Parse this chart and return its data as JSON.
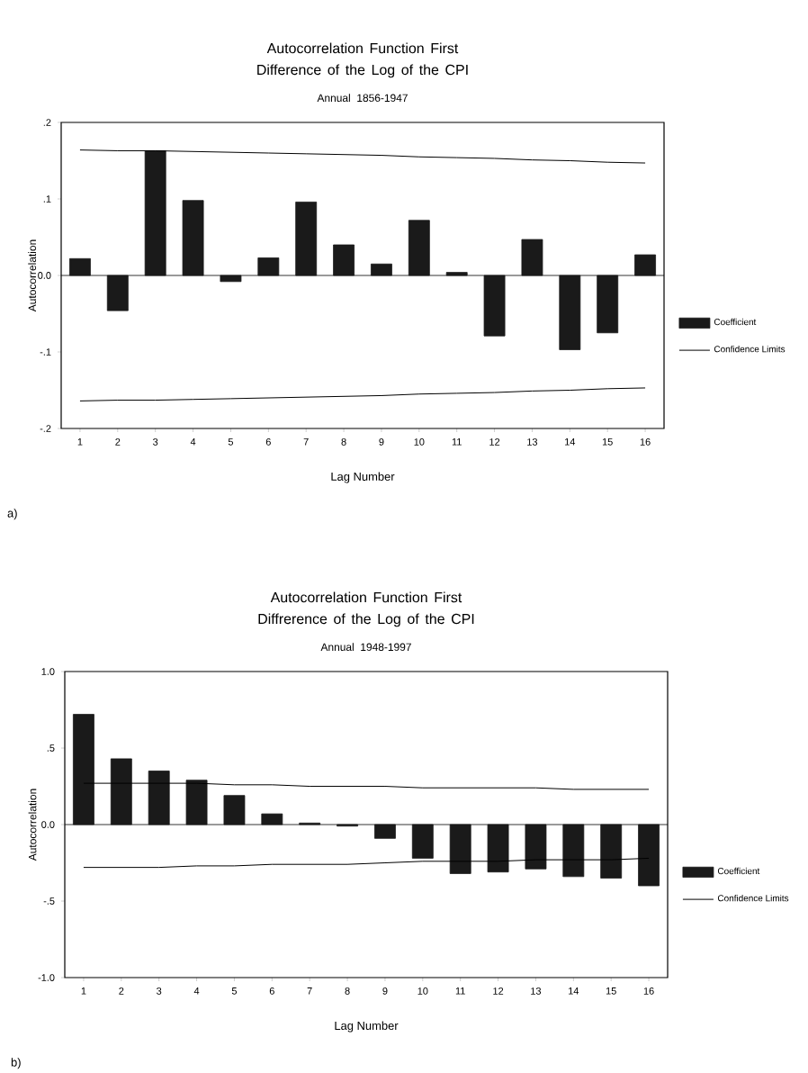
{
  "chart_data": [
    {
      "type": "bar",
      "title": "Autocorrelation Function First Difference of the Log of the CPI",
      "subtitle": "Annual 1856-1947",
      "xlabel": "Lag Number",
      "ylabel": "Autocorrelation",
      "categories": [
        "1",
        "2",
        "3",
        "4",
        "5",
        "6",
        "7",
        "8",
        "9",
        "10",
        "11",
        "12",
        "13",
        "14",
        "15",
        "16"
      ],
      "series": [
        {
          "name": "Coefficient",
          "color": "#1a1a1a",
          "values": [
            0.022,
            -0.046,
            0.163,
            0.098,
            -0.008,
            0.023,
            0.096,
            0.04,
            0.015,
            0.072,
            0.004,
            -0.079,
            0.047,
            -0.097,
            -0.075,
            0.027
          ]
        },
        {
          "type": "line",
          "name": "Confidence Limits",
          "color": "#000000",
          "values": [
            0.164,
            0.163,
            0.163,
            0.162,
            0.161,
            0.16,
            0.159,
            0.158,
            0.157,
            0.155,
            0.154,
            0.153,
            0.151,
            0.15,
            0.148,
            0.147
          ]
        },
        {
          "type": "line",
          "color": "#000000",
          "values": [
            -0.164,
            -0.163,
            -0.163,
            -0.162,
            -0.161,
            -0.16,
            -0.159,
            -0.158,
            -0.157,
            -0.155,
            -0.154,
            -0.153,
            -0.151,
            -0.15,
            -0.148,
            -0.147
          ]
        }
      ],
      "ylim": [
        -0.2,
        0.2
      ],
      "yticks": [
        {
          "value": 0.2,
          "label": ".2"
        },
        {
          "value": 0.1,
          "label": ".1"
        },
        {
          "value": 0,
          "label": "0.0"
        },
        {
          "value": -0.1,
          "label": "-.1"
        },
        {
          "value": -0.2,
          "label": "-.2"
        }
      ],
      "legend": "right",
      "marker": "none",
      "line_style": "solid",
      "annotations": [
        "a)"
      ]
    },
    {
      "type": "bar",
      "title": "Autocorrelation Function First Diffrerence of the Log of the CPI",
      "subtitle": "Annual 1948-1997",
      "xlabel": "Lag Number",
      "ylabel": "Autocorrelation",
      "categories": [
        "1",
        "2",
        "3",
        "4",
        "5",
        "6",
        "7",
        "8",
        "9",
        "10",
        "11",
        "12",
        "13",
        "14",
        "15",
        "16"
      ],
      "series": [
        {
          "name": "Coefficient",
          "color": "#1a1a1a",
          "values": [
            0.72,
            0.43,
            0.35,
            0.29,
            0.19,
            0.07,
            0.01,
            -0.01,
            -0.09,
            -0.22,
            -0.32,
            -0.31,
            -0.29,
            -0.34,
            -0.35,
            -0.4
          ]
        },
        {
          "type": "line",
          "name": "Confidence Limits",
          "color": "#000000",
          "values": [
            0.27,
            0.27,
            0.27,
            0.27,
            0.26,
            0.26,
            0.25,
            0.25,
            0.25,
            0.24,
            0.24,
            0.24,
            0.24,
            0.23,
            0.23,
            0.23
          ]
        },
        {
          "type": "line",
          "color": "#000000",
          "values": [
            -0.28,
            -0.28,
            -0.28,
            -0.27,
            -0.27,
            -0.26,
            -0.26,
            -0.26,
            -0.25,
            -0.24,
            -0.24,
            -0.24,
            -0.23,
            -0.23,
            -0.23,
            -0.22
          ]
        }
      ],
      "ylim": [
        -1.0,
        1.0
      ],
      "yticks": [
        {
          "value": 1.0,
          "label": "1.0"
        },
        {
          "value": 0.5,
          "label": ".5"
        },
        {
          "value": 0,
          "label": "0.0"
        },
        {
          "value": -0.5,
          "label": "-.5"
        },
        {
          "value": -1.0,
          "label": "-1.0"
        }
      ],
      "legend": "right",
      "marker": "none",
      "line_style": "solid",
      "annotations": [
        "b)"
      ]
    }
  ]
}
